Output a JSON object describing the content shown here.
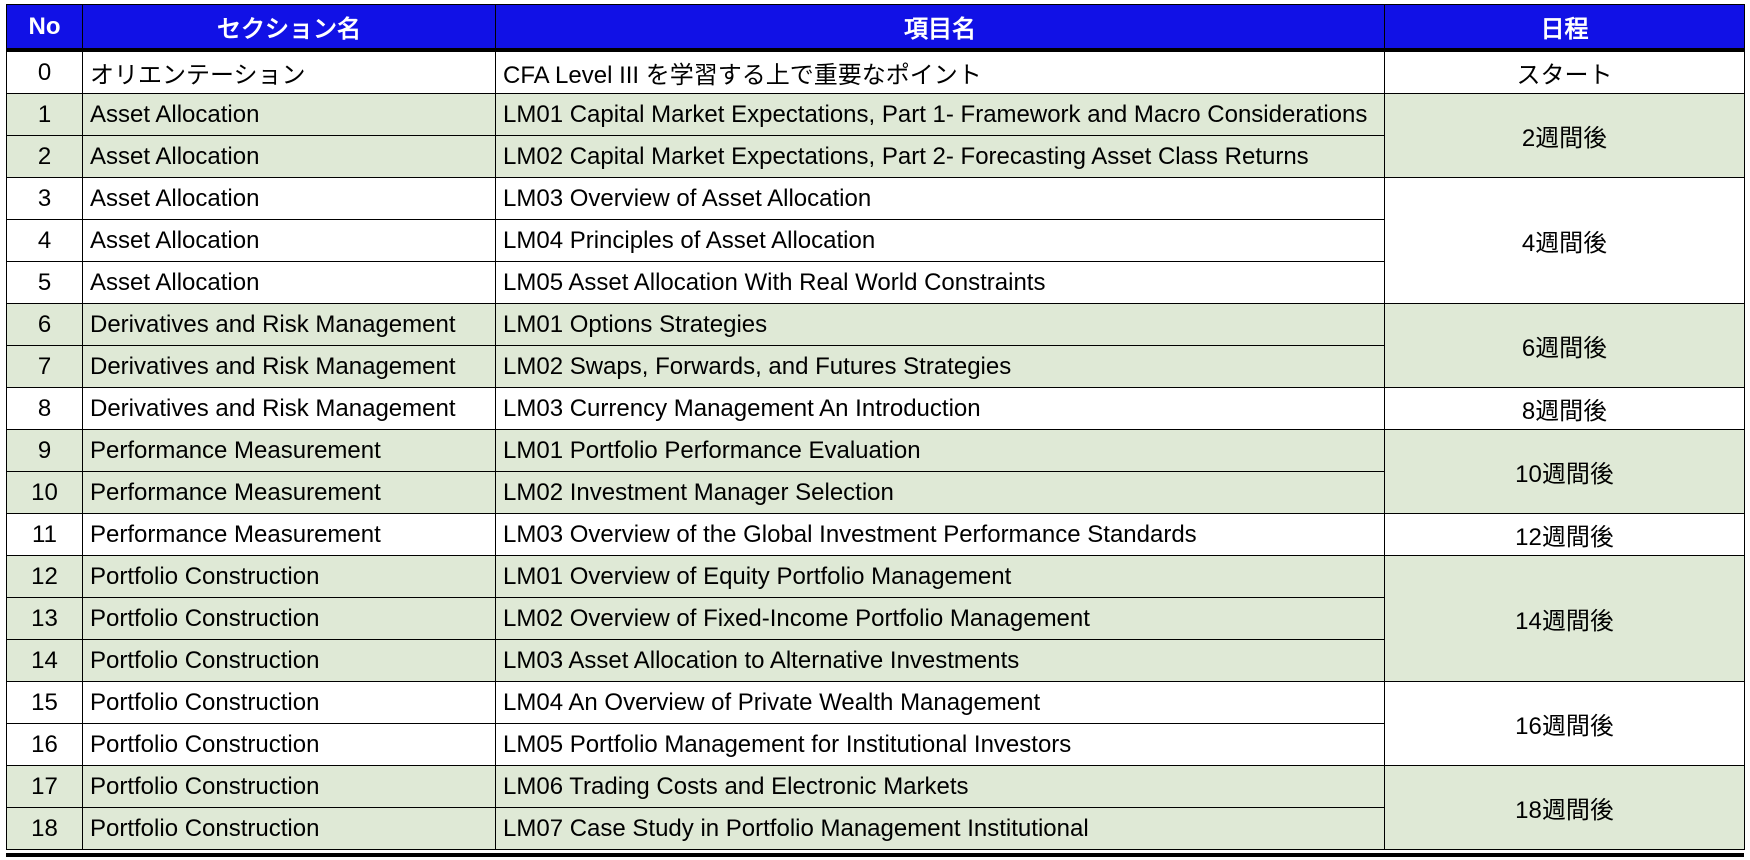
{
  "headers": {
    "no": "No",
    "section": "セクション名",
    "item": "項目名",
    "schedule": "日程"
  },
  "rows": [
    {
      "no": "0",
      "section": "オリエンテーション",
      "item": "CFA Level III を学習する上で重要なポイント"
    },
    {
      "no": "1",
      "section": "Asset Allocation",
      "item": "LM01 Capital Market Expectations, Part 1- Framework and Macro Considerations"
    },
    {
      "no": "2",
      "section": "Asset Allocation",
      "item": "LM02 Capital Market Expectations, Part 2- Forecasting Asset Class Returns"
    },
    {
      "no": "3",
      "section": "Asset Allocation",
      "item": "LM03 Overview of Asset Allocation"
    },
    {
      "no": "4",
      "section": "Asset Allocation",
      "item": "LM04 Principles of Asset Allocation"
    },
    {
      "no": "5",
      "section": "Asset Allocation",
      "item": "LM05 Asset Allocation With Real World Constraints"
    },
    {
      "no": "6",
      "section": "Derivatives and Risk Management",
      "item": "LM01 Options Strategies"
    },
    {
      "no": "7",
      "section": "Derivatives and Risk Management",
      "item": "LM02 Swaps, Forwards, and Futures Strategies"
    },
    {
      "no": "8",
      "section": "Derivatives and Risk Management",
      "item": "LM03 Currency Management An Introduction"
    },
    {
      "no": "9",
      "section": "Performance Measurement",
      "item": "LM01 Portfolio Performance Evaluation"
    },
    {
      "no": "10",
      "section": "Performance Measurement",
      "item": "LM02 Investment Manager Selection"
    },
    {
      "no": "11",
      "section": "Performance Measurement",
      "item": "LM03 Overview of the Global Investment Performance Standards"
    },
    {
      "no": "12",
      "section": "Portfolio Construction",
      "item": "LM01 Overview of Equity Portfolio Management"
    },
    {
      "no": "13",
      "section": "Portfolio Construction",
      "item": "LM02 Overview of Fixed-Income Portfolio Management"
    },
    {
      "no": "14",
      "section": "Portfolio Construction",
      "item": "LM03 Asset Allocation to Alternative Investments"
    },
    {
      "no": "15",
      "section": "Portfolio Construction",
      "item": "LM04 An Overview of Private Wealth Management"
    },
    {
      "no": "16",
      "section": "Portfolio Construction",
      "item": "LM05 Portfolio Management for Institutional Investors"
    },
    {
      "no": "17",
      "section": "Portfolio Construction",
      "item": "LM06 Trading Costs and Electronic Markets"
    },
    {
      "no": "18",
      "section": "Portfolio Construction",
      "item": "LM07 Case Study in Portfolio Management Institutional"
    }
  ],
  "schedule": [
    {
      "label": "スタート",
      "rowspan": 1,
      "shaded": false
    },
    {
      "label": "2週間後",
      "rowspan": 2,
      "shaded": true
    },
    {
      "label": "4週間後",
      "rowspan": 3,
      "shaded": false
    },
    {
      "label": "6週間後",
      "rowspan": 2,
      "shaded": true
    },
    {
      "label": "8週間後",
      "rowspan": 1,
      "shaded": false
    },
    {
      "label": "10週間後",
      "rowspan": 2,
      "shaded": true
    },
    {
      "label": "12週間後",
      "rowspan": 1,
      "shaded": false
    },
    {
      "label": "14週間後",
      "rowspan": 3,
      "shaded": true
    },
    {
      "label": "16週間後",
      "rowspan": 2,
      "shaded": false
    },
    {
      "label": "18週間後",
      "rowspan": 2,
      "shaded": true
    }
  ],
  "colors": {
    "header_bg": "#1111e6",
    "header_text": "#ffffff",
    "band_green": "#dfe9d6",
    "band_white": "#ffffff"
  }
}
